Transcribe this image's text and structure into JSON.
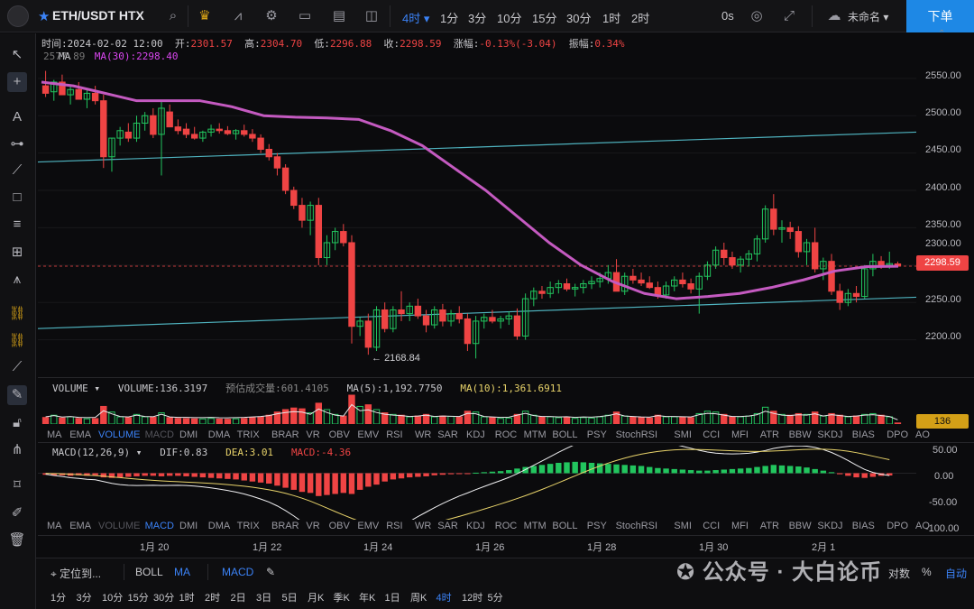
{
  "toolbar": {
    "symbol": "ETH/USDT HTX",
    "timeframes": [
      "4时",
      "1分",
      "3分",
      "10分",
      "15分",
      "30分",
      "1时",
      "2时"
    ],
    "active_timeframe": "4时",
    "countdown": "0s",
    "layout_name": "未命名",
    "order_label": "下单"
  },
  "info": {
    "time_label": "时间:",
    "time": "2024-02-02 12:00",
    "open_label": "开:",
    "open": "2301.57",
    "high_label": "高:",
    "high": "2304.70",
    "low_label": "低:",
    "low": "2296.88",
    "close_label": "收:",
    "close": "2298.59",
    "change_label": "涨幅:",
    "change": "-0.13%(-3.04)",
    "amp_label": "振幅:",
    "amp": "0.34%",
    "ma_prefix": "2577.89",
    "ma_label": "MA",
    "ma30": "MA(30):2298.40"
  },
  "price_axis": [
    "2550.00",
    "2500.00",
    "2450.00",
    "2400.00",
    "2350.00",
    "2300.00",
    "2250.00",
    "2200.00"
  ],
  "current_price": "2298.59",
  "low_marker": "2168.84",
  "volume": {
    "title": "VOLUME",
    "value": "VOLUME:136.3197",
    "estimate": "预估成交量:601.4105",
    "ma5": "MA(5):1,192.7750",
    "ma10": "MA(10):1,361.6911",
    "tag": "136"
  },
  "macd": {
    "title": "MACD(12,26,9)",
    "dif": "DIF:0.83",
    "dea": "DEA:3.01",
    "macd": "MACD:-4.36",
    "axis": [
      "50.00",
      "0.00",
      "-50.00",
      "-100.00"
    ]
  },
  "indicators": [
    "MA",
    "EMA",
    "VOLUME",
    "MACD",
    "DMI",
    "DMA",
    "TRIX",
    "BRAR",
    "VR",
    "OBV",
    "EMV",
    "RSI",
    "WR",
    "SAR",
    "KDJ",
    "ROC",
    "MTM",
    "BOLL",
    "PSY",
    "StochRSI",
    "SMI",
    "CCI",
    "MFI",
    "ATR",
    "BBW",
    "SKDJ",
    "BIAS",
    "DPO",
    "AO"
  ],
  "dates": [
    "1月 20",
    "1月 22",
    "1月 24",
    "1月 26",
    "1月 28",
    "1月 30",
    "2月 1"
  ],
  "bottom": {
    "locate": "定位到...",
    "boll": "BOLL",
    "ma": "MA",
    "macd": "MACD",
    "log": "对数",
    "pct": "%",
    "auto": "自动",
    "intervals": [
      "1分",
      "3分",
      "10分",
      "15分",
      "30分",
      "1时",
      "2时",
      "2日",
      "3日",
      "5日",
      "月K",
      "季K",
      "年K",
      "1日",
      "周K",
      "4时",
      "12时",
      "5分"
    ],
    "active_interval": "4时"
  },
  "watermark": "公众号 · 大白论币",
  "colors": {
    "up": "#22c55e",
    "down": "#ef4444",
    "ma30": "#c45ac0",
    "accent": "#3b82f6",
    "trend": "#4fb3bf"
  },
  "chart_data": {
    "type": "candlestick",
    "timeframe": "4时",
    "candles_ohlc": [
      [
        2540,
        2560,
        2525,
        2530
      ],
      [
        2532,
        2548,
        2520,
        2545
      ],
      [
        2545,
        2555,
        2535,
        2528
      ],
      [
        2528,
        2540,
        2515,
        2535
      ],
      [
        2535,
        2545,
        2525,
        2522
      ],
      [
        2522,
        2535,
        2510,
        2530
      ],
      [
        2530,
        2540,
        2515,
        2520
      ],
      [
        2520,
        2528,
        2430,
        2445
      ],
      [
        2445,
        2470,
        2425,
        2470
      ],
      [
        2470,
        2485,
        2460,
        2480
      ],
      [
        2478,
        2490,
        2465,
        2470
      ],
      [
        2470,
        2500,
        2465,
        2490
      ],
      [
        2490,
        2505,
        2480,
        2500
      ],
      [
        2500,
        2510,
        2470,
        2475
      ],
      [
        2475,
        2520,
        2420,
        2510
      ],
      [
        2505,
        2515,
        2490,
        2485
      ],
      [
        2485,
        2495,
        2475,
        2480
      ],
      [
        2482,
        2490,
        2470,
        2475
      ],
      [
        2475,
        2485,
        2468,
        2470
      ],
      [
        2470,
        2480,
        2465,
        2478
      ],
      [
        2478,
        2488,
        2472,
        2482
      ],
      [
        2482,
        2490,
        2476,
        2480
      ],
      [
        2480,
        2486,
        2474,
        2476
      ],
      [
        2476,
        2482,
        2468,
        2480
      ],
      [
        2480,
        2488,
        2472,
        2475
      ],
      [
        2475,
        2482,
        2465,
        2470
      ],
      [
        2470,
        2475,
        2450,
        2455
      ],
      [
        2455,
        2462,
        2440,
        2445
      ],
      [
        2445,
        2450,
        2420,
        2430
      ],
      [
        2430,
        2435,
        2395,
        2400
      ],
      [
        2400,
        2405,
        2375,
        2380
      ],
      [
        2380,
        2390,
        2350,
        2360
      ],
      [
        2360,
        2385,
        2340,
        2380
      ],
      [
        2380,
        2390,
        2300,
        2310
      ],
      [
        2310,
        2340,
        2300,
        2330
      ],
      [
        2330,
        2350,
        2320,
        2345
      ],
      [
        2345,
        2355,
        2325,
        2330
      ],
      [
        2330,
        2340,
        2195,
        2218
      ],
      [
        2218,
        2230,
        2205,
        2225
      ],
      [
        2225,
        2235,
        2180,
        2190
      ],
      [
        2190,
        2245,
        2185,
        2240
      ],
      [
        2240,
        2250,
        2210,
        2215
      ],
      [
        2215,
        2245,
        2210,
        2240
      ],
      [
        2240,
        2265,
        2225,
        2235
      ],
      [
        2235,
        2250,
        2225,
        2245
      ],
      [
        2245,
        2255,
        2228,
        2232
      ],
      [
        2232,
        2240,
        2210,
        2220
      ],
      [
        2220,
        2245,
        2215,
        2240
      ],
      [
        2240,
        2248,
        2218,
        2225
      ],
      [
        2225,
        2240,
        2218,
        2235
      ],
      [
        2235,
        2245,
        2222,
        2228
      ],
      [
        2228,
        2235,
        2185,
        2195
      ],
      [
        2195,
        2232,
        2175,
        2225
      ],
      [
        2225,
        2235,
        2215,
        2230
      ],
      [
        2230,
        2240,
        2222,
        2225
      ],
      [
        2225,
        2232,
        2215,
        2228
      ],
      [
        2228,
        2238,
        2220,
        2232
      ],
      [
        2232,
        2242,
        2200,
        2205
      ],
      [
        2205,
        2262,
        2200,
        2255
      ],
      [
        2255,
        2270,
        2245,
        2265
      ],
      [
        2265,
        2272,
        2255,
        2262
      ],
      [
        2262,
        2278,
        2256,
        2270
      ],
      [
        2270,
        2280,
        2262,
        2275
      ],
      [
        2275,
        2282,
        2265,
        2268
      ],
      [
        2268,
        2275,
        2258,
        2270
      ],
      [
        2270,
        2280,
        2262,
        2275
      ],
      [
        2275,
        2285,
        2268,
        2278
      ],
      [
        2278,
        2290,
        2270,
        2282
      ],
      [
        2282,
        2300,
        2275,
        2290
      ],
      [
        2290,
        2308,
        2280,
        2265
      ],
      [
        2265,
        2290,
        2260,
        2285
      ],
      [
        2285,
        2295,
        2275,
        2280
      ],
      [
        2280,
        2290,
        2272,
        2276
      ],
      [
        2276,
        2285,
        2268,
        2270
      ],
      [
        2270,
        2278,
        2255,
        2260
      ],
      [
        2260,
        2278,
        2255,
        2272
      ],
      [
        2272,
        2285,
        2265,
        2280
      ],
      [
        2280,
        2290,
        2270,
        2275
      ],
      [
        2275,
        2282,
        2262,
        2268
      ],
      [
        2268,
        2290,
        2235,
        2285
      ],
      [
        2285,
        2305,
        2280,
        2300
      ],
      [
        2300,
        2325,
        2295,
        2320
      ],
      [
        2320,
        2330,
        2300,
        2310
      ],
      [
        2310,
        2318,
        2295,
        2300
      ],
      [
        2300,
        2312,
        2290,
        2308
      ],
      [
        2308,
        2320,
        2298,
        2315
      ],
      [
        2315,
        2340,
        2305,
        2335
      ],
      [
        2335,
        2380,
        2330,
        2375
      ],
      [
        2375,
        2395,
        2340,
        2348
      ],
      [
        2348,
        2360,
        2330,
        2350
      ],
      [
        2350,
        2358,
        2335,
        2345
      ],
      [
        2345,
        2352,
        2310,
        2318
      ],
      [
        2318,
        2335,
        2300,
        2330
      ],
      [
        2330,
        2350,
        2290,
        2295
      ],
      [
        2295,
        2310,
        2280,
        2305
      ],
      [
        2305,
        2315,
        2260,
        2265
      ],
      [
        2265,
        2275,
        2240,
        2250
      ],
      [
        2250,
        2268,
        2245,
        2262
      ],
      [
        2262,
        2272,
        2250,
        2258
      ],
      [
        2258,
        2300,
        2255,
        2295
      ],
      [
        2295,
        2315,
        2285,
        2305
      ],
      [
        2305,
        2312,
        2295,
        2300
      ],
      [
        2300,
        2318,
        2295,
        2302
      ],
      [
        2301.57,
        2304.7,
        2296.88,
        2298.59
      ]
    ],
    "ma30_approx": [
      2545,
      2540,
      2530,
      2520,
      2520,
      2520,
      2512,
      2500,
      2498,
      2497,
      2495,
      2480,
      2460,
      2430,
      2400,
      2365,
      2330,
      2300,
      2278,
      2262,
      2255,
      2258,
      2262,
      2270,
      2280,
      2292,
      2298,
      2298.4
    ],
    "trend_line_upper": [
      2438,
      2478
    ],
    "trend_line_lower": [
      2215,
      2257
    ],
    "y_range": [
      2150,
      2580
    ],
    "volume_approx": [
      820,
      1100,
      760,
      900,
      700,
      650,
      680,
      2200,
      1500,
      900,
      800,
      1200,
      900,
      850,
      1400,
      800,
      700,
      680,
      650,
      640,
      700,
      620,
      600,
      650,
      700,
      800,
      900,
      1100,
      1500,
      1800,
      2000,
      1900,
      1400,
      2600,
      1800,
      1200,
      1000,
      3600,
      2200,
      2400,
      1800,
      1400,
      1200,
      1100,
      900,
      1000,
      1200,
      900,
      1000,
      950,
      900,
      1600,
      1500,
      900,
      800,
      700,
      750,
      1200,
      1600,
      1100,
      900,
      900,
      800,
      850,
      700,
      800,
      750,
      900,
      1100,
      1500,
      1000,
      900,
      800,
      750,
      1100,
      900,
      900,
      850,
      800,
      1300,
      1600,
      1500,
      1200,
      900,
      900,
      1000,
      1300,
      2100,
      1600,
      1200,
      1100,
      1300,
      1200,
      1500,
      1000,
      1300,
      1100,
      900,
      1000,
      1200,
      1300,
      1100,
      900,
      136
    ],
    "macd_hist_approx": [
      -3,
      -4,
      -4,
      -5,
      -4,
      -5,
      -4,
      -8,
      -9,
      -8,
      -7,
      -6,
      -5,
      -5,
      -6,
      -5,
      -5,
      -6,
      -7,
      -8,
      -9,
      -10,
      -11,
      -12,
      -14,
      -16,
      -18,
      -20,
      -24,
      -28,
      -32,
      -36,
      -38,
      -44,
      -42,
      -40,
      -38,
      -40,
      -32,
      -26,
      -22,
      -16,
      -12,
      -10,
      -8,
      -7,
      -6,
      -4,
      -3,
      -2,
      -1,
      -1,
      1,
      2,
      3,
      4,
      6,
      9,
      12,
      14,
      16,
      18,
      20,
      21,
      22,
      21,
      20,
      19,
      18,
      17,
      16,
      15,
      14,
      12,
      10,
      9,
      8,
      7,
      6,
      5,
      5,
      6,
      7,
      8,
      9,
      10,
      12,
      14,
      16,
      15,
      14,
      13,
      11,
      8,
      5,
      2,
      -2,
      -5,
      -8,
      -9,
      -7,
      -5,
      -4.36
    ],
    "macd_axis_range": [
      -100,
      60
    ]
  }
}
